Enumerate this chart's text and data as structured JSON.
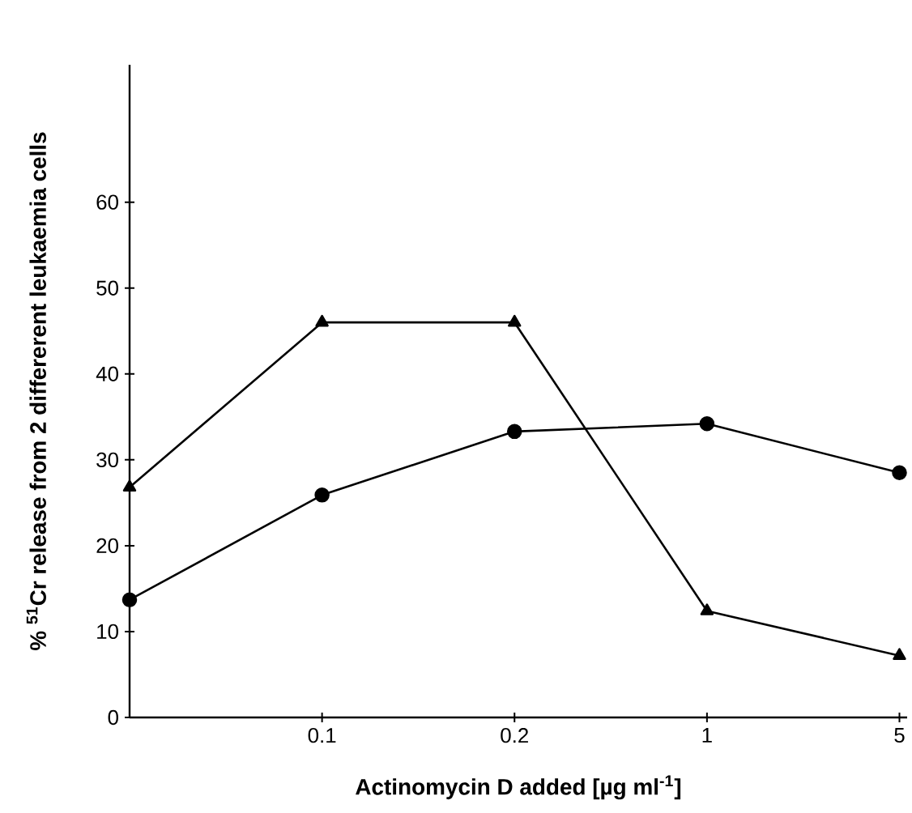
{
  "chart_data": {
    "type": "line",
    "xlabel": "Actinomycin D added [µg ml$^{-1}$]",
    "ylabel": "% $^{51}$Cr release from 2 differerent leukaemia cells",
    "categories": [
      null,
      "0.1",
      "0.2",
      "1",
      "5"
    ],
    "series": [
      {
        "color": "#000000",
        "marker": "triangle",
        "values": [
          26.8,
          46,
          46,
          12.4,
          7.2
        ]
      },
      {
        "color": "#000000",
        "marker": "circle",
        "values": [
          13.7,
          25.9,
          33.3,
          34.2,
          28.5
        ]
      }
    ],
    "ylim": [
      0,
      76
    ],
    "yticks": [
      0,
      10,
      20,
      30,
      40,
      50,
      60
    ],
    "line_style": "solid",
    "grid": false
  }
}
